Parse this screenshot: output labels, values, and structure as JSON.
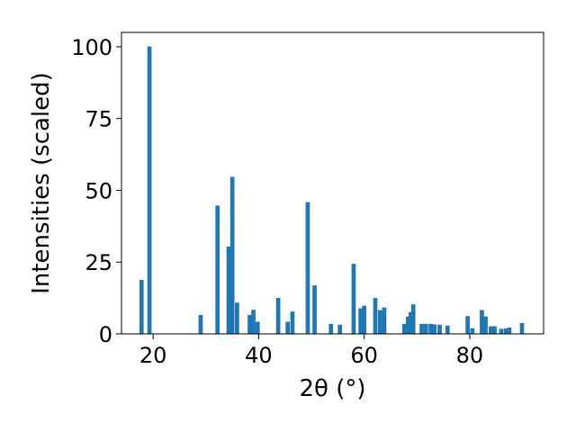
{
  "chart_data": {
    "type": "bar",
    "title": "",
    "xlabel": "2θ (°)",
    "ylabel": "Intensities (scaled)",
    "xlim": [
      14,
      94
    ],
    "ylim": [
      0,
      105
    ],
    "x_ticks": [
      20,
      40,
      60,
      80
    ],
    "y_ticks": [
      0,
      25,
      50,
      75,
      100
    ],
    "bar_width_deg": 0.8,
    "grid": false,
    "legend": "none",
    "colors": {
      "bar": "#1f77b4",
      "axes": "#000000",
      "background": "#ffffff"
    },
    "series": [
      {
        "x": [
          17.8,
          19.3,
          29.0,
          32.2,
          34.3,
          35.0,
          35.9,
          38.3,
          39.0,
          39.8,
          43.7,
          45.5,
          46.4,
          49.3,
          50.6,
          53.7,
          55.4,
          58.0,
          59.3,
          60.0,
          62.1,
          63.0,
          63.8,
          67.6,
          68.3,
          68.8,
          69.3,
          70.9,
          71.7,
          72.6,
          73.3,
          74.3,
          75.8,
          79.6,
          80.5,
          82.3,
          83.0,
          84.0,
          84.7,
          86.0,
          86.9,
          87.5,
          89.9
        ],
        "values": [
          18.8,
          100.1,
          6.6,
          44.7,
          30.4,
          54.7,
          10.9,
          6.6,
          8.4,
          4.2,
          12.5,
          4.2,
          7.8,
          45.9,
          16.9,
          3.5,
          3.2,
          24.4,
          8.9,
          9.8,
          12.5,
          8.3,
          9.2,
          3.5,
          6.0,
          7.6,
          10.3,
          3.5,
          3.5,
          3.5,
          3.3,
          3.2,
          2.9,
          6.2,
          2.0,
          8.3,
          6.1,
          2.6,
          2.7,
          1.8,
          1.9,
          2.2,
          3.8
        ]
      }
    ]
  }
}
